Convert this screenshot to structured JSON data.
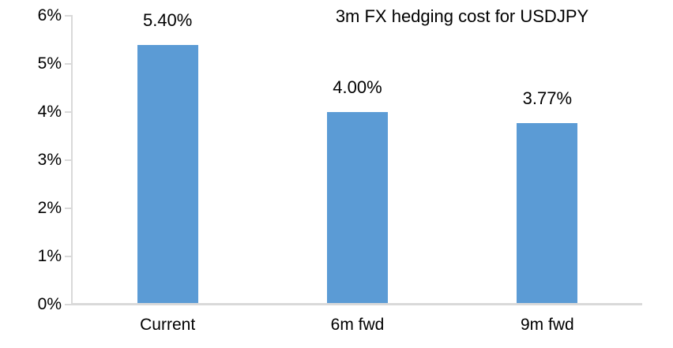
{
  "chart_data": {
    "type": "bar",
    "title": "3m FX hedging cost for USDJPY",
    "categories": [
      "Current",
      "6m fwd",
      "9m fwd"
    ],
    "values": [
      5.4,
      4.0,
      3.77
    ],
    "data_labels": [
      "5.40%",
      "4.00%",
      "3.77%"
    ],
    "ylim": [
      0,
      6
    ],
    "yticks": [
      0,
      1,
      2,
      3,
      4,
      5,
      6
    ],
    "ytick_labels": [
      "0%",
      "1%",
      "2%",
      "3%",
      "4%",
      "5%",
      "6%"
    ],
    "xlabel": "",
    "ylabel": "",
    "grid": false,
    "legend": false,
    "colors": {
      "bar": "#5B9BD5",
      "axis": "#D9D9D9",
      "text": "#000000",
      "background": "#FFFFFF"
    }
  }
}
